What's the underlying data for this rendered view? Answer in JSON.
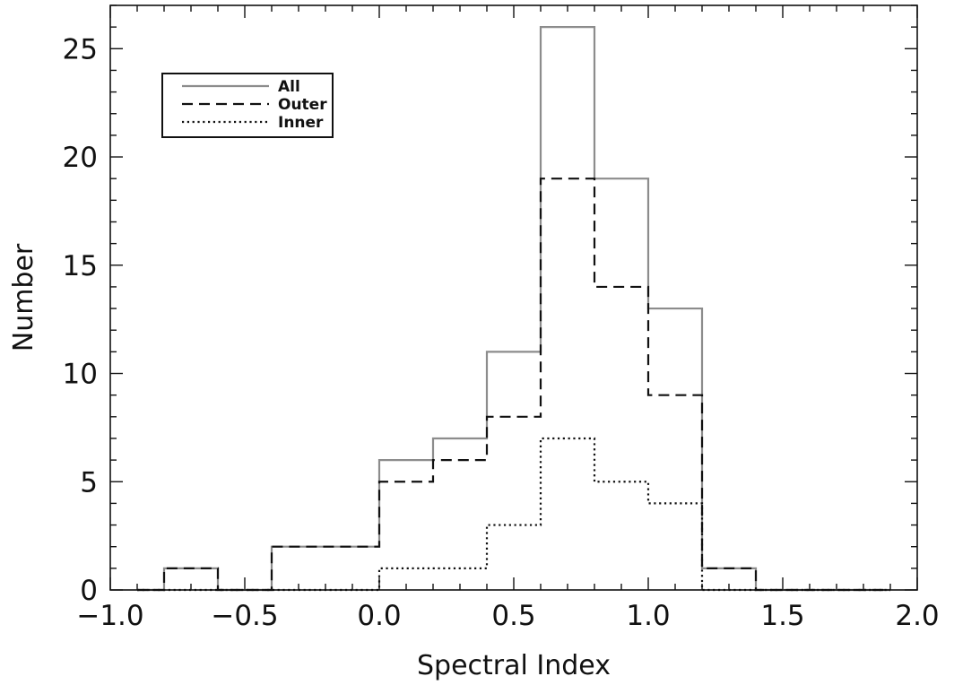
{
  "chart_data": {
    "type": "histogram",
    "xlabel": "Spectral Index",
    "ylabel": "Number",
    "xlim": [
      -1.0,
      2.0
    ],
    "ylim": [
      0,
      27
    ],
    "x_ticks": [
      "−1.0",
      "−0.5",
      "0.0",
      "0.5",
      "1.0",
      "1.5",
      "2.0"
    ],
    "y_ticks": [
      "0",
      "5",
      "10",
      "15",
      "20",
      "25"
    ],
    "bin_edges": [
      -0.9,
      -0.8,
      -0.6,
      -0.4,
      -0.2,
      0.0,
      0.2,
      0.4,
      0.6,
      0.8,
      1.0,
      1.2,
      1.4,
      1.6,
      1.8,
      1.9
    ],
    "series": [
      {
        "name": "All",
        "style": "solid",
        "color": "#8c8c8c",
        "values": [
          0,
          1,
          0,
          2,
          2,
          6,
          7,
          11,
          26,
          19,
          13,
          1,
          0,
          0,
          0
        ]
      },
      {
        "name": "Outer",
        "style": "dashed",
        "color": "#111111",
        "values": [
          0,
          1,
          0,
          2,
          2,
          5,
          6,
          8,
          19,
          14,
          9,
          1,
          0,
          0,
          0
        ]
      },
      {
        "name": "Inner",
        "style": "dotted",
        "color": "#111111",
        "values": [
          0,
          0,
          0,
          0,
          0,
          1,
          1,
          3,
          7,
          5,
          4,
          0,
          0,
          0,
          0
        ]
      }
    ],
    "grid": false,
    "legend_position": "top-left"
  }
}
